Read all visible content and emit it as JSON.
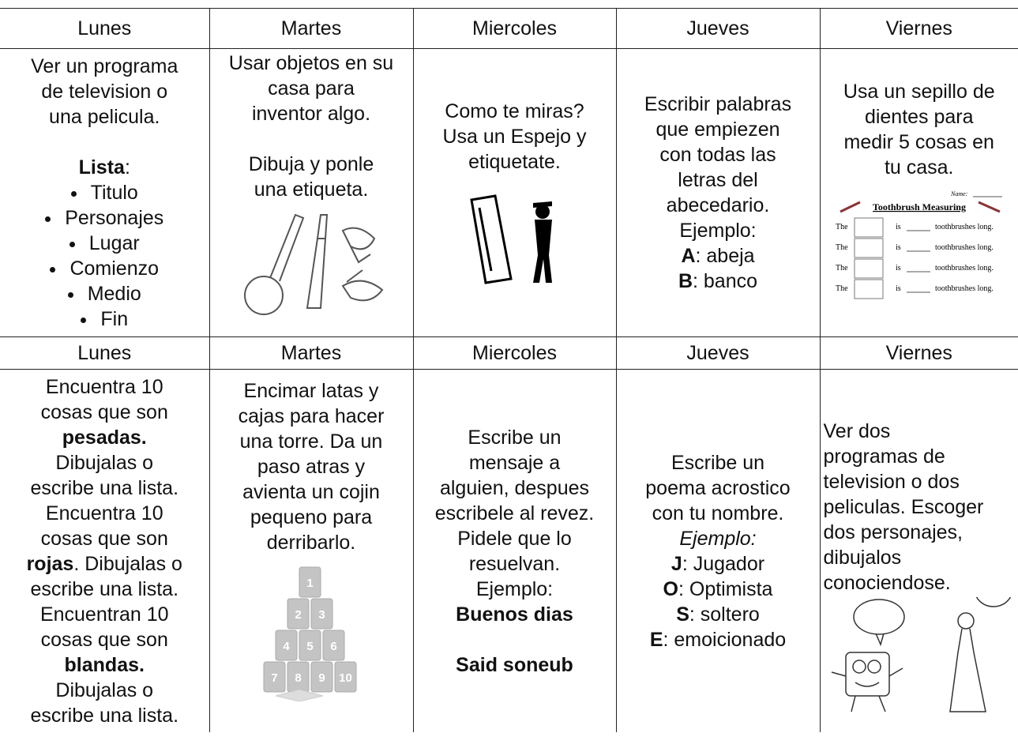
{
  "table": {
    "rows": [
      [
        "Lunes",
        "Martes",
        "Miercoles",
        "Jueves",
        "Viernes"
      ],
      [
        {
          "paragraphs": [
            [
              "Ver un programa",
              "de television o",
              "una pelicula."
            ],
            [
              {
                "segments": [
                  {
                    "text": "Lista",
                    "style": "bold"
                  },
                  {
                    "text": ":"
                  }
                ]
              },
              {
                "bullet": true,
                "segments": [
                  {
                    "text": "Titulo"
                  }
                ]
              },
              {
                "bullet": true,
                "segments": [
                  {
                    "text": "Personajes"
                  }
                ]
              },
              {
                "bullet": true,
                "segments": [
                  {
                    "text": "Lugar"
                  }
                ]
              },
              {
                "bullet": true,
                "segments": [
                  {
                    "text": "Comienzo"
                  }
                ]
              },
              {
                "bullet": true,
                "segments": [
                  {
                    "text": "Medio"
                  }
                ]
              },
              {
                "bullet": true,
                "segments": [
                  {
                    "text": "Fin"
                  }
                ]
              }
            ]
          ]
        },
        {
          "paragraphs": [
            [
              "Usar objetos en su",
              "casa para",
              "inventor algo."
            ],
            [
              "Dibuja y ponle",
              "una etiqueta."
            ]
          ]
        },
        {
          "paragraphs": [
            [
              "Como te miras?",
              "Usa un Espejo y",
              "etiquetate."
            ]
          ]
        },
        {
          "paragraphs": [
            [
              "Escribir palabras",
              "que empiezen",
              "con todas las",
              "letras del",
              "abecedario.",
              "Ejemplo:",
              {
                "segments": [
                  {
                    "text": "A",
                    "style": "bold"
                  },
                  {
                    "text": ": abeja"
                  }
                ]
              },
              {
                "segments": [
                  {
                    "text": "B",
                    "style": "bold"
                  },
                  {
                    "text": ": banco"
                  }
                ]
              }
            ]
          ]
        },
        {
          "paragraphs": [
            [
              "Usa un sepillo de",
              "dientes para",
              "medir 5 cosas en",
              "tu casa."
            ]
          ],
          "worksheet": {
            "name_label": "Name:",
            "title": "Toothbrush Measuring",
            "rows": [
              [
                "The",
                "is",
                "toothbrushes long."
              ],
              [
                "The",
                "is",
                "toothbrushes long."
              ],
              [
                "The",
                "is",
                "toothbrushes long."
              ],
              [
                "The",
                "is",
                "toothbrushes long."
              ]
            ]
          }
        }
      ],
      [
        "Lunes",
        "Martes",
        "Miercoles",
        "Jueves",
        "Viernes"
      ],
      [
        {
          "paragraphs": [
            [
              "Encuentra 10",
              "cosas que son",
              {
                "segments": [
                  {
                    "text": "pesadas.",
                    "style": "bold"
                  }
                ]
              },
              "Dibujalas o",
              "escribe una lista.",
              "Encuentra 10",
              "cosas que son",
              {
                "segments": [
                  {
                    "text": "rojas",
                    "style": "bold"
                  },
                  {
                    "text": ". Dibujalas o"
                  }
                ]
              },
              "escribe una lista.",
              "Encuentran 10",
              "cosas que son",
              {
                "segments": [
                  {
                    "text": "blandas.",
                    "style": "bold"
                  }
                ]
              },
              "Dibujalas o",
              "escribe una lista."
            ]
          ]
        },
        {
          "paragraphs": [
            [
              "Encimar latas y",
              "cajas para hacer",
              "una torre. Da un",
              "paso atras y",
              "avienta un cojin",
              "pequeno para",
              "derribarlo."
            ]
          ],
          "cans": [
            "1",
            "2",
            "3",
            "4",
            "5",
            "6",
            "7",
            "8",
            "9",
            "10"
          ]
        },
        {
          "paragraphs": [
            [
              "Escribe un",
              "mensaje a",
              "alguien, despues",
              "escribele al revez.",
              "Pidele que lo",
              "resuelvan.",
              "Ejemplo:",
              {
                "segments": [
                  {
                    "text": "Buenos dias",
                    "style": "bold"
                  }
                ]
              }
            ],
            [
              {
                "segments": [
                  {
                    "text": "Said soneub",
                    "style": "bold"
                  }
                ]
              }
            ]
          ]
        },
        {
          "paragraphs": [
            [
              "Escribe un",
              "poema acrostico",
              "con tu nombre.",
              {
                "segments": [
                  {
                    "text": "Ejemplo:",
                    "style": "italic"
                  }
                ]
              },
              {
                "segments": [
                  {
                    "text": "J",
                    "style": "bold"
                  },
                  {
                    "text": ": Jugador"
                  }
                ]
              },
              {
                "segments": [
                  {
                    "text": "O",
                    "style": "bold"
                  },
                  {
                    "text": ": Optimista"
                  }
                ]
              },
              {
                "segments": [
                  {
                    "text": "S",
                    "style": "bold"
                  },
                  {
                    "text": ": soltero"
                  }
                ]
              },
              {
                "segments": [
                  {
                    "text": "E",
                    "style": "bold"
                  },
                  {
                    "text": ": emoicionado"
                  }
                ]
              }
            ]
          ]
        },
        {
          "paragraphs": [
            [
              "Ver dos",
              "programas de",
              "television o dos",
              "peliculas. Escoger",
              "dos personajes,",
              "dibujalos",
              "conociendose."
            ]
          ]
        }
      ]
    ]
  }
}
